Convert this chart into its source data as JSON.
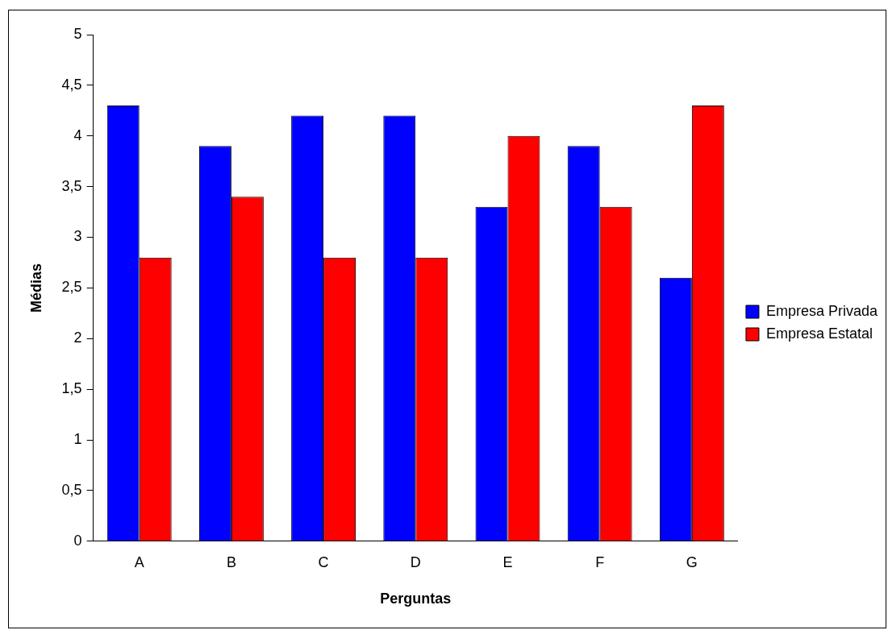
{
  "chart_data": {
    "type": "bar",
    "xlabel": "Perguntas",
    "ylabel": "Médias",
    "categories": [
      "A",
      "B",
      "C",
      "D",
      "E",
      "F",
      "G"
    ],
    "series": [
      {
        "name": "Empresa Privada",
        "color": "#0000ff",
        "values": [
          4.3,
          3.9,
          4.2,
          4.2,
          3.3,
          3.9,
          2.6
        ]
      },
      {
        "name": "Empresa Estatal",
        "color": "#ff0000",
        "values": [
          2.8,
          3.4,
          2.8,
          2.8,
          4.0,
          3.3,
          4.3
        ]
      }
    ],
    "ylim": [
      0,
      5
    ],
    "yticks": [
      0,
      {
        "value": 0.5,
        "label": "0,5"
      },
      1,
      {
        "value": 1.5,
        "label": "1,5"
      },
      2,
      {
        "value": 2.5,
        "label": "2,5"
      },
      3,
      {
        "value": 3.5,
        "label": "3,5"
      },
      4,
      {
        "value": 4.5,
        "label": "4,5"
      },
      5
    ],
    "grid": false,
    "legend": "right"
  }
}
